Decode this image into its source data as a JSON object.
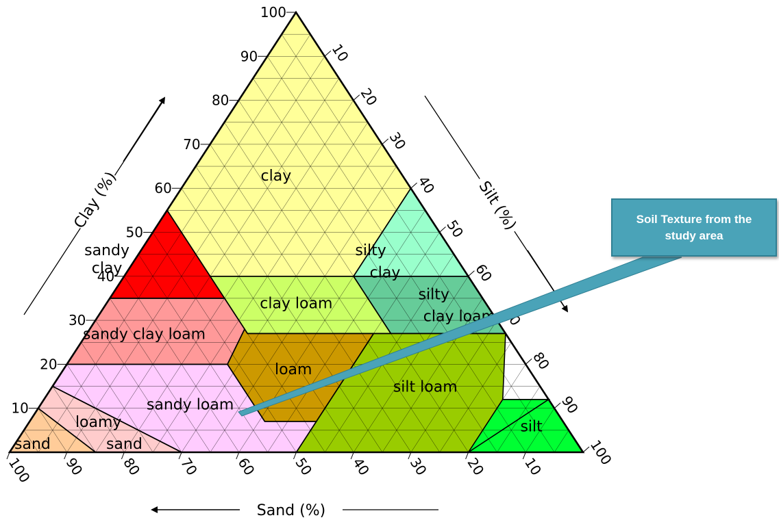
{
  "axes": {
    "clay": {
      "title": "Clay (%)",
      "ticks": [
        10,
        20,
        30,
        40,
        50,
        60,
        70,
        80,
        90,
        100
      ]
    },
    "silt": {
      "title": "Silt (%)",
      "ticks": [
        10,
        20,
        30,
        40,
        50,
        60,
        70,
        80,
        90,
        100
      ]
    },
    "sand": {
      "title": "Sand (%)",
      "ticks": [
        100,
        90,
        80,
        70,
        60,
        50,
        40,
        30,
        20,
        10
      ]
    }
  },
  "regions": [
    {
      "key": "clay",
      "lines": [
        "clay"
      ],
      "color": "#ffff99"
    },
    {
      "key": "sandy-clay",
      "lines": [
        "sandy",
        "clay"
      ],
      "color": "#ff0000"
    },
    {
      "key": "silty-clay",
      "lines": [
        "silty",
        "clay"
      ],
      "color": "#99ffcc"
    },
    {
      "key": "clay-loam",
      "lines": [
        "clay loam"
      ],
      "color": "#ccff66"
    },
    {
      "key": "silty-clay-loam",
      "lines": [
        "silty",
        "clay loam"
      ],
      "color": "#66cc99"
    },
    {
      "key": "sandy-clay-loam",
      "lines": [
        "sandy clay loam"
      ],
      "color": "#ff9999"
    },
    {
      "key": "loam",
      "lines": [
        "loam"
      ],
      "color": "#cc9900"
    },
    {
      "key": "silt-loam",
      "lines": [
        "silt loam"
      ],
      "color": "#99cc00"
    },
    {
      "key": "sandy-loam",
      "lines": [
        "sandy loam"
      ],
      "color": "#ffccff"
    },
    {
      "key": "loamy-sand",
      "lines": [
        "loamy",
        "sand"
      ],
      "color": "#ffcccc"
    },
    {
      "key": "sand",
      "lines": [
        "sand"
      ],
      "color": "#ffcc99"
    },
    {
      "key": "silt",
      "lines": [
        "silt"
      ],
      "color": "#00ff33"
    }
  ],
  "callout": {
    "text": "Soil Texture from the study area",
    "color": "#4aa3b8"
  }
}
